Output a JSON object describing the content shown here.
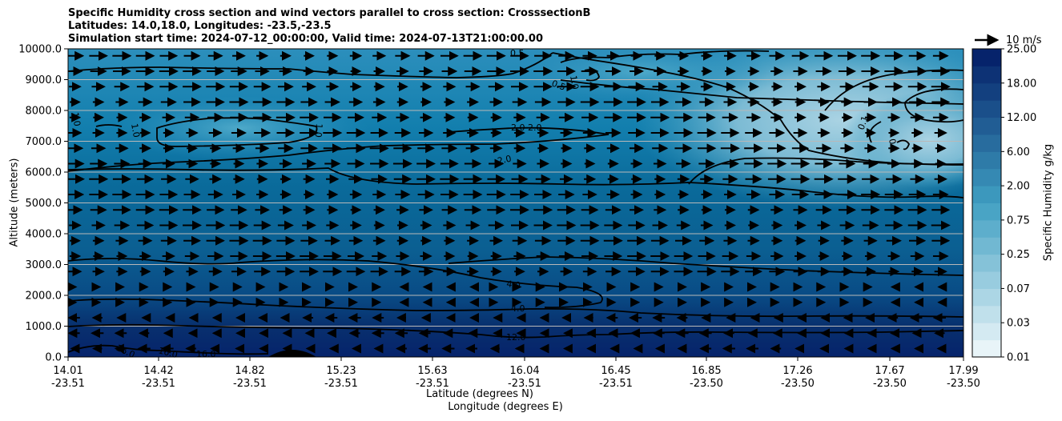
{
  "chart_data": {
    "type": "heatmap",
    "title_lines": [
      "Specific Humidity cross section and wind vectors parallel to cross section: CrosssectionB",
      "Latitudes: 14.0,18.0, Longitudes: -23.5,-23.5",
      "Simulation start time: 2024-07-12_00:00:00, Valid time: 2024-07-13T21:00:00.00"
    ],
    "ylabel": "Altitude (meters)",
    "xlabel_lat": "Latitude (degrees N)",
    "xlabel_lon": "Longitude (degrees E)",
    "ylim": [
      0,
      10000
    ],
    "y_ticks": [
      "0.0",
      "1000.0",
      "2000.0",
      "3000.0",
      "4000.0",
      "5000.0",
      "6000.0",
      "7000.0",
      "8000.0",
      "9000.0",
      "10000.0"
    ],
    "x_ticks": [
      {
        "lat": "14.01",
        "lon": "-23.51"
      },
      {
        "lat": "14.42",
        "lon": "-23.51"
      },
      {
        "lat": "14.82",
        "lon": "-23.51"
      },
      {
        "lat": "15.23",
        "lon": "-23.51"
      },
      {
        "lat": "15.63",
        "lon": "-23.51"
      },
      {
        "lat": "16.04",
        "lon": "-23.51"
      },
      {
        "lat": "16.45",
        "lon": "-23.51"
      },
      {
        "lat": "16.85",
        "lon": "-23.50"
      },
      {
        "lat": "17.26",
        "lon": "-23.50"
      },
      {
        "lat": "17.67",
        "lon": "-23.50"
      },
      {
        "lat": "17.99",
        "lon": "-23.50"
      }
    ],
    "colorbar": {
      "label": "Specific Humidity g/kg",
      "tick_labels": [
        "0.01",
        "0.03",
        "0.07",
        "0.25",
        "0.75",
        "2.00",
        "6.00",
        "12.00",
        "18.00",
        "25.00"
      ]
    },
    "contour_labels": [
      "0.5",
      "0.5",
      "1.0",
      "1.0",
      "1.0",
      "1.0",
      "0.1",
      "0.1",
      "2.0 2.0",
      "2.0",
      "4.0",
      "4.0",
      "12.0",
      "16.0",
      "16.0",
      "16.0"
    ],
    "wind_reference": "10 m/s",
    "colors": {
      "low": "#e9f4f8",
      "mid": "#3f9fc2",
      "high": "#06236b",
      "contour": "#000000"
    }
  }
}
